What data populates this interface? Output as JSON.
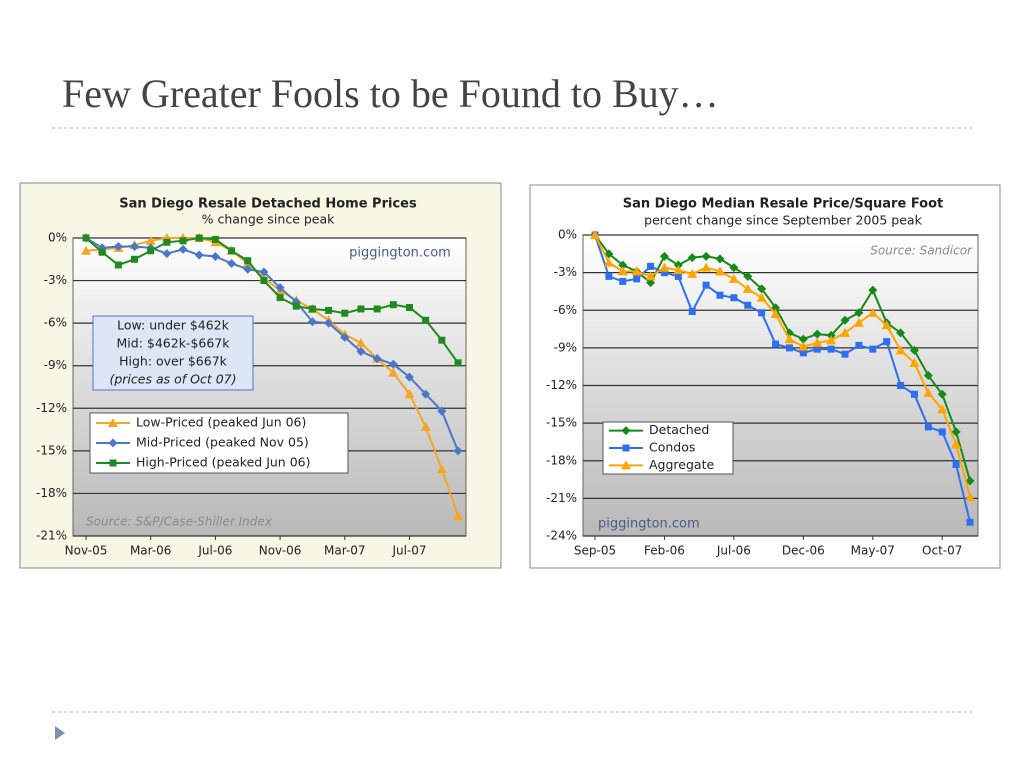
{
  "title": "Few Greater Fools to be Found to Buy…",
  "chart_data": [
    {
      "type": "line",
      "title": "San Diego Resale Detached Home Prices",
      "subtitle": "% change since peak",
      "watermark": "piggington.com",
      "source": "Source: S&P/Case-Shiller Index",
      "note": [
        "Low: under $462k",
        "Mid: $462k-$667k",
        "High: over $667k",
        "(prices as of Oct 07)"
      ],
      "categories": [
        "Nov-05",
        null,
        null,
        null,
        "Mar-06",
        null,
        null,
        null,
        "Jul-06",
        null,
        null,
        null,
        "Nov-06",
        null,
        null,
        null,
        "Mar-07",
        null,
        null,
        null,
        "Jul-07",
        null,
        null,
        null
      ],
      "series": [
        {
          "name": "Low-Priced (peaked Jun 06)",
          "color": "#f5a623",
          "marker": "triangle",
          "values": [
            -0.9,
            -0.8,
            -0.7,
            -0.5,
            -0.2,
            0,
            0,
            0,
            -0.3,
            -0.9,
            -1.8,
            -2.8,
            -3.7,
            -4.4,
            -5.0,
            -5.8,
            -6.8,
            -7.4,
            -8.5,
            -9.5,
            -11.0,
            -13.3,
            -16.3,
            -19.6
          ]
        },
        {
          "name": "Mid-Priced (peaked Nov 05)",
          "color": "#4a78c8",
          "marker": "diamond",
          "values": [
            0,
            -0.7,
            -0.6,
            -0.6,
            -0.7,
            -1.1,
            -0.8,
            -1.2,
            -1.3,
            -1.8,
            -2.2,
            -2.4,
            -3.5,
            -4.5,
            -5.9,
            -6.0,
            -7.0,
            -8.0,
            -8.5,
            -8.9,
            -9.8,
            -11.0,
            -12.2,
            -15.0
          ]
        },
        {
          "name": "High-Priced (peaked Jun 06)",
          "color": "#1f8a1f",
          "marker": "square",
          "values": [
            0,
            -1.0,
            -1.9,
            -1.5,
            -0.9,
            -0.3,
            -0.2,
            0,
            -0.1,
            -0.9,
            -1.6,
            -3.0,
            -4.2,
            -4.8,
            -5.0,
            -5.1,
            -5.3,
            -5.0,
            -5.0,
            -4.7,
            -4.9,
            -5.8,
            -7.2,
            -8.8
          ]
        }
      ],
      "ylim": [
        -21,
        0
      ],
      "yticks": [
        {
          "value": 0,
          "label": "0%"
        },
        {
          "value": -3,
          "label": "-3%"
        },
        {
          "value": -6,
          "label": "-6%"
        },
        {
          "value": -9,
          "label": "-9%"
        },
        {
          "value": -12,
          "label": "-12%"
        },
        {
          "value": -15,
          "label": "-15%"
        },
        {
          "value": -18,
          "label": "-18%"
        },
        {
          "value": -21,
          "label": "-21%"
        }
      ],
      "grid": true
    },
    {
      "type": "line",
      "title": "San Diego Median Resale Price/Square Foot",
      "subtitle": "percent change since September 2005 peak",
      "watermark": "piggington.com",
      "source": "Source: Sandicor",
      "categories": [
        "Sep-05",
        null,
        null,
        null,
        null,
        "Feb-06",
        null,
        null,
        null,
        null,
        "Jul-06",
        null,
        null,
        null,
        null,
        "Dec-06",
        null,
        null,
        null,
        null,
        "May-07",
        null,
        null,
        null,
        null,
        "Oct-07",
        null,
        null
      ],
      "series": [
        {
          "name": "Detached",
          "color": "#168a16",
          "marker": "diamond",
          "values": [
            0,
            -1.5,
            -2.4,
            -2.9,
            -3.8,
            -1.7,
            -2.4,
            -1.8,
            -1.7,
            -1.9,
            -2.6,
            -3.3,
            -4.3,
            -5.8,
            -7.8,
            -8.3,
            -7.9,
            -8.0,
            -6.8,
            -6.2,
            -4.4,
            -7.0,
            -7.8,
            -9.2,
            -11.2,
            -12.7,
            -15.7,
            -19.6
          ]
        },
        {
          "name": "Condos",
          "color": "#2e6ff0",
          "marker": "square",
          "values": [
            0,
            -3.3,
            -3.7,
            -3.5,
            -2.5,
            -3.0,
            -3.3,
            -6.1,
            -4.0,
            -4.8,
            -5.0,
            -5.6,
            -6.2,
            -8.7,
            -9.0,
            -9.4,
            -9.1,
            -9.1,
            -9.5,
            -8.8,
            -9.1,
            -8.5,
            -12.0,
            -12.7,
            -15.3,
            -15.7,
            -18.3,
            -22.9
          ]
        },
        {
          "name": "Aggregate",
          "color": "#ffa500",
          "marker": "triangle",
          "values": [
            0,
            -2.2,
            -2.9,
            -2.9,
            -3.3,
            -2.6,
            -2.8,
            -3.1,
            -2.6,
            -2.9,
            -3.5,
            -4.3,
            -5.0,
            -6.3,
            -8.3,
            -8.9,
            -8.6,
            -8.4,
            -7.8,
            -7.0,
            -6.2,
            -7.2,
            -9.2,
            -10.2,
            -12.6,
            -13.9,
            -16.7,
            -20.9
          ]
        }
      ],
      "ylim": [
        -24,
        0
      ],
      "yticks": [
        {
          "value": 0,
          "label": "0%"
        },
        {
          "value": -3,
          "label": "-3%"
        },
        {
          "value": -6,
          "label": "-6%"
        },
        {
          "value": -9,
          "label": "-9%"
        },
        {
          "value": -12,
          "label": "-12%"
        },
        {
          "value": -15,
          "label": "-15%"
        },
        {
          "value": -18,
          "label": "-18%"
        },
        {
          "value": -21,
          "label": "-21%"
        },
        {
          "value": -24,
          "label": "-24%"
        }
      ],
      "grid": true
    }
  ]
}
